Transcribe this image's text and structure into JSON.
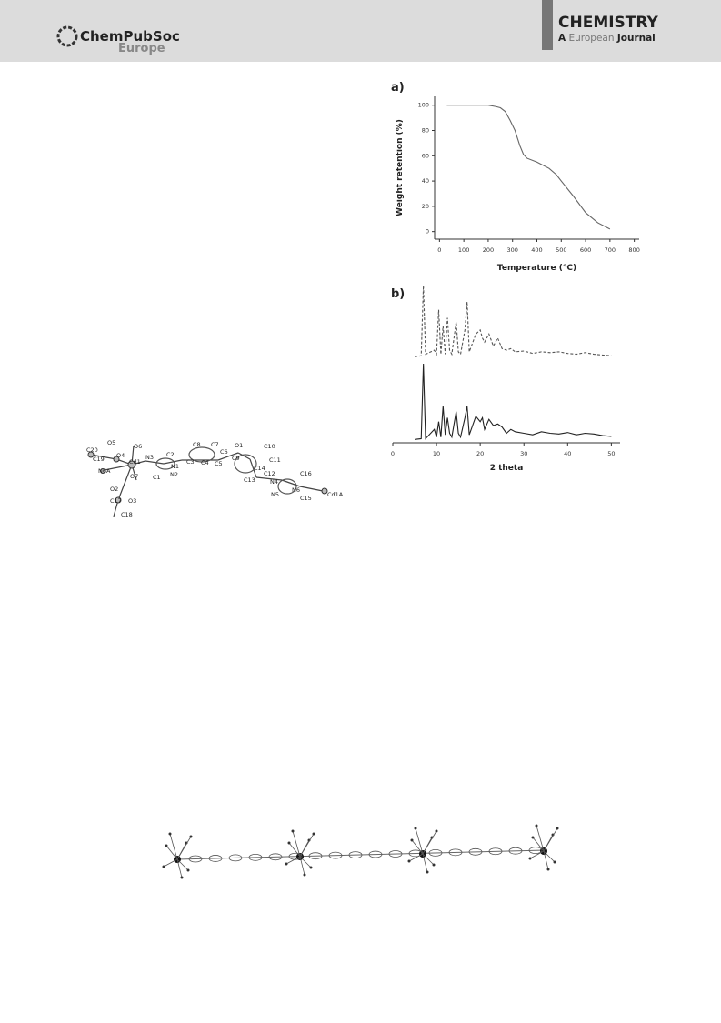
{
  "header": {
    "publisher": "ChemPubSoc",
    "publisher_sub": "Europe",
    "journal": "CHEMISTRY",
    "journal_a": "A",
    "journal_european": "European",
    "journal_journal": "Journal"
  },
  "structure": {
    "atom_labels": [
      "C20",
      "O5",
      "O6",
      "C19",
      "O4",
      "N6A",
      "Cd1",
      "N3",
      "C2",
      "C8",
      "C7",
      "C6",
      "O1",
      "C10",
      "N1",
      "C3",
      "C4",
      "C5",
      "C9",
      "C11",
      "N2",
      "C1",
      "O7",
      "C14",
      "C12",
      "C16",
      "O2",
      "C17",
      "O3",
      "C13",
      "N4",
      "N6",
      "N5",
      "C15",
      "Cd1A",
      "C18"
    ]
  },
  "chart_data": [
    {
      "type": "line",
      "panel": "a)",
      "x_label": "Temperature (°C)",
      "y_label": "Weight retention (%)",
      "x": [
        30,
        100,
        200,
        230,
        250,
        270,
        290,
        310,
        330,
        345,
        360,
        400,
        450,
        480,
        500,
        550,
        600,
        650,
        700
      ],
      "series": [
        {
          "color": "#666666",
          "style": "solid",
          "values": [
            100,
            100,
            100,
            99,
            98,
            95,
            88,
            80,
            68,
            61,
            58,
            55,
            50,
            45,
            40,
            28,
            15,
            7,
            2
          ]
        }
      ],
      "xlim": [
        -20,
        820
      ],
      "ylim": [
        -6,
        107
      ],
      "xticks": [
        0,
        100,
        200,
        300,
        400,
        500,
        600,
        700,
        800
      ],
      "yticks": [
        0,
        20,
        40,
        60,
        80,
        100
      ]
    },
    {
      "type": "line",
      "panel": "b)",
      "x_label": "2 theta",
      "x": [
        5,
        6.5,
        7,
        7.5,
        9.5,
        10,
        10.5,
        11,
        11.5,
        12,
        12.5,
        13,
        13.5,
        14.5,
        15,
        15.5,
        16.5,
        17,
        17.5,
        19,
        20,
        20.5,
        21,
        22,
        23,
        24,
        25,
        26,
        27,
        28,
        30,
        32,
        34,
        36,
        38,
        40,
        42,
        44,
        46,
        48,
        50
      ],
      "series": [
        {
          "color": "#555555",
          "style": "dashed",
          "values": [
            2,
            3,
            90,
            5,
            10,
            5,
            60,
            5,
            40,
            5,
            50,
            10,
            5,
            45,
            8,
            5,
            35,
            70,
            8,
            30,
            35,
            25,
            20,
            30,
            15,
            25,
            12,
            10,
            12,
            8,
            9,
            6,
            8,
            7,
            8,
            6,
            5,
            7,
            5,
            4,
            3
          ]
        },
        {
          "color": "#222222",
          "style": "solid",
          "values": [
            2,
            3,
            100,
            3,
            15,
            5,
            25,
            5,
            45,
            8,
            30,
            10,
            5,
            38,
            10,
            5,
            30,
            45,
            8,
            32,
            25,
            30,
            15,
            28,
            20,
            22,
            18,
            10,
            15,
            12,
            10,
            8,
            12,
            10,
            9,
            11,
            8,
            10,
            9,
            7,
            6
          ]
        }
      ],
      "xlim": [
        0,
        52
      ],
      "ylim": [
        0,
        100
      ],
      "xticks": [
        0,
        10,
        20,
        30,
        40,
        50
      ]
    }
  ]
}
